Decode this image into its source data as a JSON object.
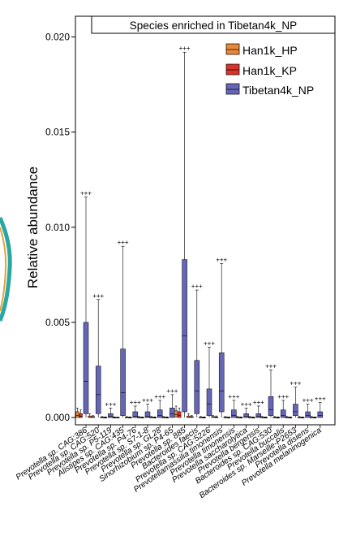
{
  "chart_data": {
    "type": "box",
    "title": "Species enriched in Tibetan4k_NP",
    "ylabel": "Relative abundance",
    "xlabel": "",
    "ylim": [
      0,
      0.0205
    ],
    "yticks": [
      "0.000",
      "0.005",
      "0.010",
      "0.015",
      "0.020"
    ],
    "legend": {
      "placement": "top-right",
      "entries": [
        "Han1k_HP",
        "Han1k_KP",
        "Tibetan4k_NP"
      ]
    },
    "colors": {
      "Han1k_HP": "#e8883a",
      "Han1k_KP": "#d9332e",
      "Tibetan4k_NP": "#6566b5"
    },
    "categories": [
      "Prevotella sp. CAG:386",
      "Prevotella sp. CAG:520",
      "Prevotella sp. P5-119",
      "Alistipes sp. CAG:435",
      "Prevotella sp. P4-76",
      "Prevotella sp. S7-1-8",
      "Prevotella sp. GL28",
      "Sinorhizobium sp. P4-65",
      "Prevotella sp. 885",
      "Bacteroides faecis",
      "Prevotella sp. CAG:5226",
      "Prevotellamassilia timonensis",
      "Prevotella timonensis",
      "Prevotella saccharolytica",
      "Prevotella bergensis",
      "Bacteroides sp. CAG:530",
      "Prevotella buccalis",
      "Bacteroides sp. Marseille-P2653",
      "Prevotella disiens",
      "Prevotella melaninogenica"
    ],
    "significance": [
      "+++",
      "+++",
      "+++",
      "+++",
      "+++",
      "+++",
      "+++",
      "+++",
      "+++",
      "+++",
      "+++",
      "+++",
      "+++",
      "+++",
      "+++",
      "+++",
      "+++",
      "+++",
      "+++",
      "+++"
    ],
    "series": [
      {
        "name": "Han1k_HP",
        "boxes": [
          {
            "low": 0,
            "q1": 0,
            "median": 0.0001,
            "q3": 0.0003,
            "high": 0.0005
          },
          {
            "low": 0,
            "q1": 0,
            "median": 2e-05,
            "q3": 8e-05,
            "high": 0.0002
          },
          {
            "low": 0,
            "q1": 0,
            "median": 0,
            "q3": 2e-05,
            "high": 5e-05
          },
          {
            "low": 0,
            "q1": 0,
            "median": 0,
            "q3": 1e-05,
            "high": 3e-05
          },
          {
            "low": 0,
            "q1": 0,
            "median": 0,
            "q3": 2e-05,
            "high": 5e-05
          },
          {
            "low": 0,
            "q1": 0,
            "median": 0,
            "q3": 2e-05,
            "high": 5e-05
          },
          {
            "low": 0,
            "q1": 0,
            "median": 0,
            "q3": 2e-05,
            "high": 5e-05
          },
          {
            "low": 0,
            "q1": 0,
            "median": 0,
            "q3": 2e-05,
            "high": 5e-05
          },
          {
            "low": 0,
            "q1": 3e-05,
            "median": 0.00015,
            "q3": 0.00035,
            "high": 0.0006
          },
          {
            "low": 0,
            "q1": 0,
            "median": 2e-05,
            "q3": 8e-05,
            "high": 0.0002
          },
          {
            "low": 0,
            "q1": 0,
            "median": 0,
            "q3": 2e-05,
            "high": 5e-05
          },
          {
            "low": 0,
            "q1": 0,
            "median": 2e-05,
            "q3": 5e-05,
            "high": 0.0001
          },
          {
            "low": 0,
            "q1": 0,
            "median": 0,
            "q3": 2e-05,
            "high": 5e-05
          },
          {
            "low": 0,
            "q1": 0,
            "median": 0,
            "q3": 2e-05,
            "high": 5e-05
          },
          {
            "low": 0,
            "q1": 0,
            "median": 0,
            "q3": 2e-05,
            "high": 5e-05
          },
          {
            "low": 0,
            "q1": 0,
            "median": 0,
            "q3": 2e-05,
            "high": 5e-05
          },
          {
            "low": 0,
            "q1": 0,
            "median": 0,
            "q3": 2e-05,
            "high": 5e-05
          },
          {
            "low": 0,
            "q1": 0,
            "median": 0,
            "q3": 2e-05,
            "high": 5e-05
          },
          {
            "low": 0,
            "q1": 0,
            "median": 0,
            "q3": 2e-05,
            "high": 5e-05
          },
          {
            "low": 0,
            "q1": 0,
            "median": 0,
            "q3": 2e-05,
            "high": 5e-05
          }
        ]
      },
      {
        "name": "Han1k_KP",
        "boxes": [
          {
            "low": 0,
            "q1": 0,
            "median": 5e-05,
            "q3": 0.0002,
            "high": 0.0004
          },
          {
            "low": 0,
            "q1": 0,
            "median": 1e-05,
            "q3": 5e-05,
            "high": 0.0001
          },
          {
            "low": 0,
            "q1": 0,
            "median": 0,
            "q3": 1e-05,
            "high": 3e-05
          },
          {
            "low": 0,
            "q1": 0,
            "median": 0,
            "q3": 1e-05,
            "high": 2e-05
          },
          {
            "low": 0,
            "q1": 0,
            "median": 0,
            "q3": 1e-05,
            "high": 3e-05
          },
          {
            "low": 0,
            "q1": 0,
            "median": 0,
            "q3": 1e-05,
            "high": 3e-05
          },
          {
            "low": 0,
            "q1": 0,
            "median": 0,
            "q3": 1e-05,
            "high": 3e-05
          },
          {
            "low": 0,
            "q1": 0,
            "median": 0,
            "q3": 1e-05,
            "high": 3e-05
          },
          {
            "low": 0,
            "q1": 0,
            "median": 0.0001,
            "q3": 0.0003,
            "high": 0.0005
          },
          {
            "low": 0,
            "q1": 0,
            "median": 1e-05,
            "q3": 5e-05,
            "high": 0.0001
          },
          {
            "low": 0,
            "q1": 0,
            "median": 0,
            "q3": 1e-05,
            "high": 3e-05
          },
          {
            "low": 0,
            "q1": 0,
            "median": 1e-05,
            "q3": 3e-05,
            "high": 8e-05
          },
          {
            "low": 0,
            "q1": 0,
            "median": 0,
            "q3": 1e-05,
            "high": 3e-05
          },
          {
            "low": 0,
            "q1": 0,
            "median": 0,
            "q3": 1e-05,
            "high": 3e-05
          },
          {
            "low": 0,
            "q1": 0,
            "median": 0,
            "q3": 1e-05,
            "high": 3e-05
          },
          {
            "low": 0,
            "q1": 0,
            "median": 0,
            "q3": 1e-05,
            "high": 3e-05
          },
          {
            "low": 0,
            "q1": 0,
            "median": 0,
            "q3": 1e-05,
            "high": 3e-05
          },
          {
            "low": 0,
            "q1": 0,
            "median": 0,
            "q3": 1e-05,
            "high": 3e-05
          },
          {
            "low": 0,
            "q1": 0,
            "median": 0,
            "q3": 1e-05,
            "high": 3e-05
          },
          {
            "low": 0,
            "q1": 0,
            "median": 0,
            "q3": 1e-05,
            "high": 3e-05
          }
        ]
      },
      {
        "name": "Tibetan4k_NP",
        "boxes": [
          {
            "low": 0,
            "q1": 0.0002,
            "median": 0.0019,
            "q3": 0.005,
            "high": 0.0116
          },
          {
            "low": 0,
            "q1": 0.0002,
            "median": 0.0012,
            "q3": 0.0027,
            "high": 0.0062
          },
          {
            "low": 0,
            "q1": 0,
            "median": 5e-05,
            "q3": 0.0002,
            "high": 0.0005
          },
          {
            "low": 0,
            "q1": 0.0001,
            "median": 0.0013,
            "q3": 0.0036,
            "high": 0.009
          },
          {
            "low": 0,
            "q1": 0,
            "median": 5e-05,
            "q3": 0.0003,
            "high": 0.0006
          },
          {
            "low": 0,
            "q1": 0,
            "median": 5e-05,
            "q3": 0.0003,
            "high": 0.0007
          },
          {
            "low": 0,
            "q1": 0,
            "median": 0.0001,
            "q3": 0.0004,
            "high": 0.0009
          },
          {
            "low": 0,
            "q1": 0,
            "median": 0.0002,
            "q3": 0.0005,
            "high": 0.0012
          },
          {
            "low": 0,
            "q1": 0.0003,
            "median": 0.0043,
            "q3": 0.0083,
            "high": 0.0192
          },
          {
            "low": 0,
            "q1": 0.0002,
            "median": 0.0014,
            "q3": 0.003,
            "high": 0.0067
          },
          {
            "low": 0,
            "q1": 0.0001,
            "median": 0.0007,
            "q3": 0.0015,
            "high": 0.0037
          },
          {
            "low": 0,
            "q1": 0.0003,
            "median": 0.0014,
            "q3": 0.0034,
            "high": 0.0081
          },
          {
            "low": 0,
            "q1": 0,
            "median": 0.0001,
            "q3": 0.0004,
            "high": 0.0009
          },
          {
            "low": 0,
            "q1": 0,
            "median": 5e-05,
            "q3": 0.0002,
            "high": 0.0005
          },
          {
            "low": 0,
            "q1": 0,
            "median": 5e-05,
            "q3": 0.0002,
            "high": 0.0006
          },
          {
            "low": 0,
            "q1": 0.0001,
            "median": 0.0004,
            "q3": 0.0011,
            "high": 0.0025
          },
          {
            "low": 0,
            "q1": 0,
            "median": 0.0001,
            "q3": 0.0004,
            "high": 0.0009
          },
          {
            "low": 0,
            "q1": 0.0001,
            "median": 0.0003,
            "q3": 0.0007,
            "high": 0.0016
          },
          {
            "low": 0,
            "q1": 0,
            "median": 0.0001,
            "q3": 0.0003,
            "high": 0.0007
          },
          {
            "low": 0,
            "q1": 0,
            "median": 0.0001,
            "q3": 0.0003,
            "high": 0.0008
          }
        ]
      }
    ]
  }
}
